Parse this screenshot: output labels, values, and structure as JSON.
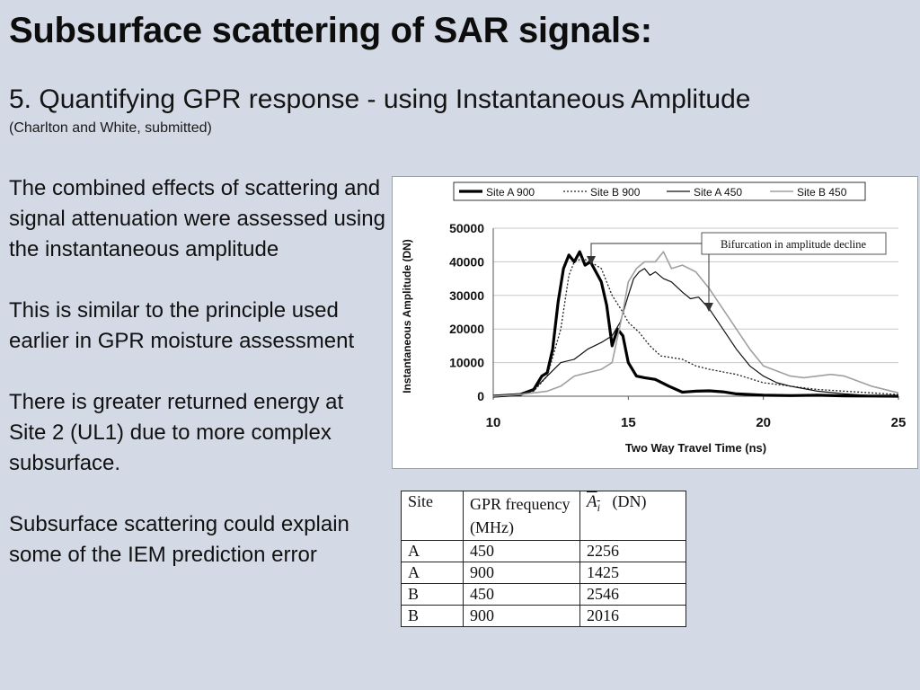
{
  "slide": {
    "title": "Subsurface scattering of SAR signals:",
    "subtitle": "5. Quantifying GPR response - using Instantaneous Amplitude",
    "citation": "(Charlton and White, submitted)",
    "paragraphs": [
      "The combined effects of scattering and signal attenuation were assessed using the instantaneous amplitude",
      "This is similar to the principle used earlier in GPR moisture assessment",
      "There is greater returned energy at Site 2 (UL1) due to more complex subsurface.",
      "Subsurface scattering could explain some of the IEM prediction error"
    ]
  },
  "chart_data": {
    "type": "line",
    "xlabel": "Two Way Travel Time (ns)",
    "ylabel": "Instantaneous Amplitude (DN)",
    "xlim": [
      10,
      25
    ],
    "ylim": [
      0,
      50000
    ],
    "xticks": [
      10,
      15,
      20,
      25
    ],
    "yticks": [
      0,
      10000,
      20000,
      30000,
      40000,
      50000
    ],
    "grid": "horizontal",
    "legend": "top",
    "annotation": "Bifurcation in amplitude decline",
    "series": [
      {
        "name": "Site A 900",
        "style": "thick-solid",
        "color": "#000000",
        "x": [
          10,
          11,
          11.5,
          11.8,
          12,
          12.2,
          12.4,
          12.6,
          12.8,
          13,
          13.2,
          13.4,
          13.6,
          13.8,
          14,
          14.2,
          14.4,
          14.6,
          14.8,
          15,
          15.3,
          15.6,
          16,
          16.5,
          17,
          17.5,
          18,
          18.5,
          19,
          20,
          21,
          22,
          23,
          24,
          25
        ],
        "y": [
          0,
          500,
          2000,
          6000,
          7000,
          14000,
          28000,
          38000,
          42000,
          40000,
          43000,
          39000,
          40000,
          37000,
          34000,
          27000,
          15000,
          20000,
          18000,
          10000,
          6000,
          5500,
          5000,
          3000,
          1200,
          1500,
          1600,
          1300,
          700,
          300,
          200,
          300,
          100,
          50,
          0
        ]
      },
      {
        "name": "Site B 900",
        "style": "dotted",
        "color": "#222222",
        "x": [
          10,
          11,
          11.5,
          12,
          12.5,
          12.8,
          13,
          13.3,
          13.6,
          14,
          14.4,
          14.8,
          15,
          15.4,
          15.8,
          16.2,
          16.6,
          17,
          17.5,
          18,
          19,
          20,
          21,
          22,
          23,
          24,
          25
        ],
        "y": [
          0,
          500,
          1500,
          6000,
          20000,
          36000,
          40000,
          41000,
          40000,
          38000,
          30000,
          25000,
          22000,
          19000,
          15000,
          12000,
          11500,
          11000,
          9000,
          8000,
          6500,
          4000,
          3000,
          2000,
          1500,
          1000,
          500
        ]
      },
      {
        "name": "Site A 450",
        "style": "thin-solid",
        "color": "#111111",
        "x": [
          10,
          11,
          11.5,
          12,
          12.5,
          13,
          13.5,
          14,
          14.4,
          14.7,
          15,
          15.2,
          15.4,
          15.6,
          15.8,
          16,
          16.3,
          16.6,
          17,
          17.3,
          17.6,
          18,
          18.5,
          19,
          19.5,
          20,
          20.5,
          21,
          22,
          23,
          24,
          25
        ],
        "y": [
          0,
          500,
          2000,
          6000,
          10000,
          11000,
          14000,
          16000,
          18000,
          22000,
          30000,
          35000,
          37000,
          38000,
          36000,
          37000,
          35000,
          34000,
          31000,
          29000,
          29500,
          26000,
          20000,
          14000,
          9000,
          6000,
          4000,
          3000,
          1500,
          700,
          200,
          0
        ]
      },
      {
        "name": "Site B 450",
        "style": "gray-solid",
        "color": "#a0a0a0",
        "x": [
          10,
          11,
          12,
          12.5,
          13,
          13.5,
          14,
          14.4,
          14.8,
          15,
          15.3,
          15.6,
          16,
          16.3,
          16.6,
          17,
          17.5,
          18,
          18.5,
          19,
          19.5,
          20,
          21,
          21.5,
          22,
          22.5,
          23,
          24,
          25
        ],
        "y": [
          0,
          500,
          1500,
          3000,
          6000,
          7000,
          8000,
          10000,
          25000,
          34000,
          38000,
          40000,
          40000,
          43000,
          38000,
          39000,
          37000,
          32000,
          26000,
          20000,
          14000,
          9000,
          6000,
          5500,
          6000,
          6500,
          6000,
          3000,
          1000
        ]
      }
    ]
  },
  "table": {
    "headers": [
      "Site",
      "GPR frequency (MHz)",
      "(DN)"
    ],
    "ai_symbol": "A",
    "ai_sub": "i",
    "rows": [
      [
        "A",
        "450",
        "2256"
      ],
      [
        "A",
        "900",
        "1425"
      ],
      [
        "B",
        "450",
        "2546"
      ],
      [
        "B",
        "900",
        "2016"
      ]
    ]
  }
}
